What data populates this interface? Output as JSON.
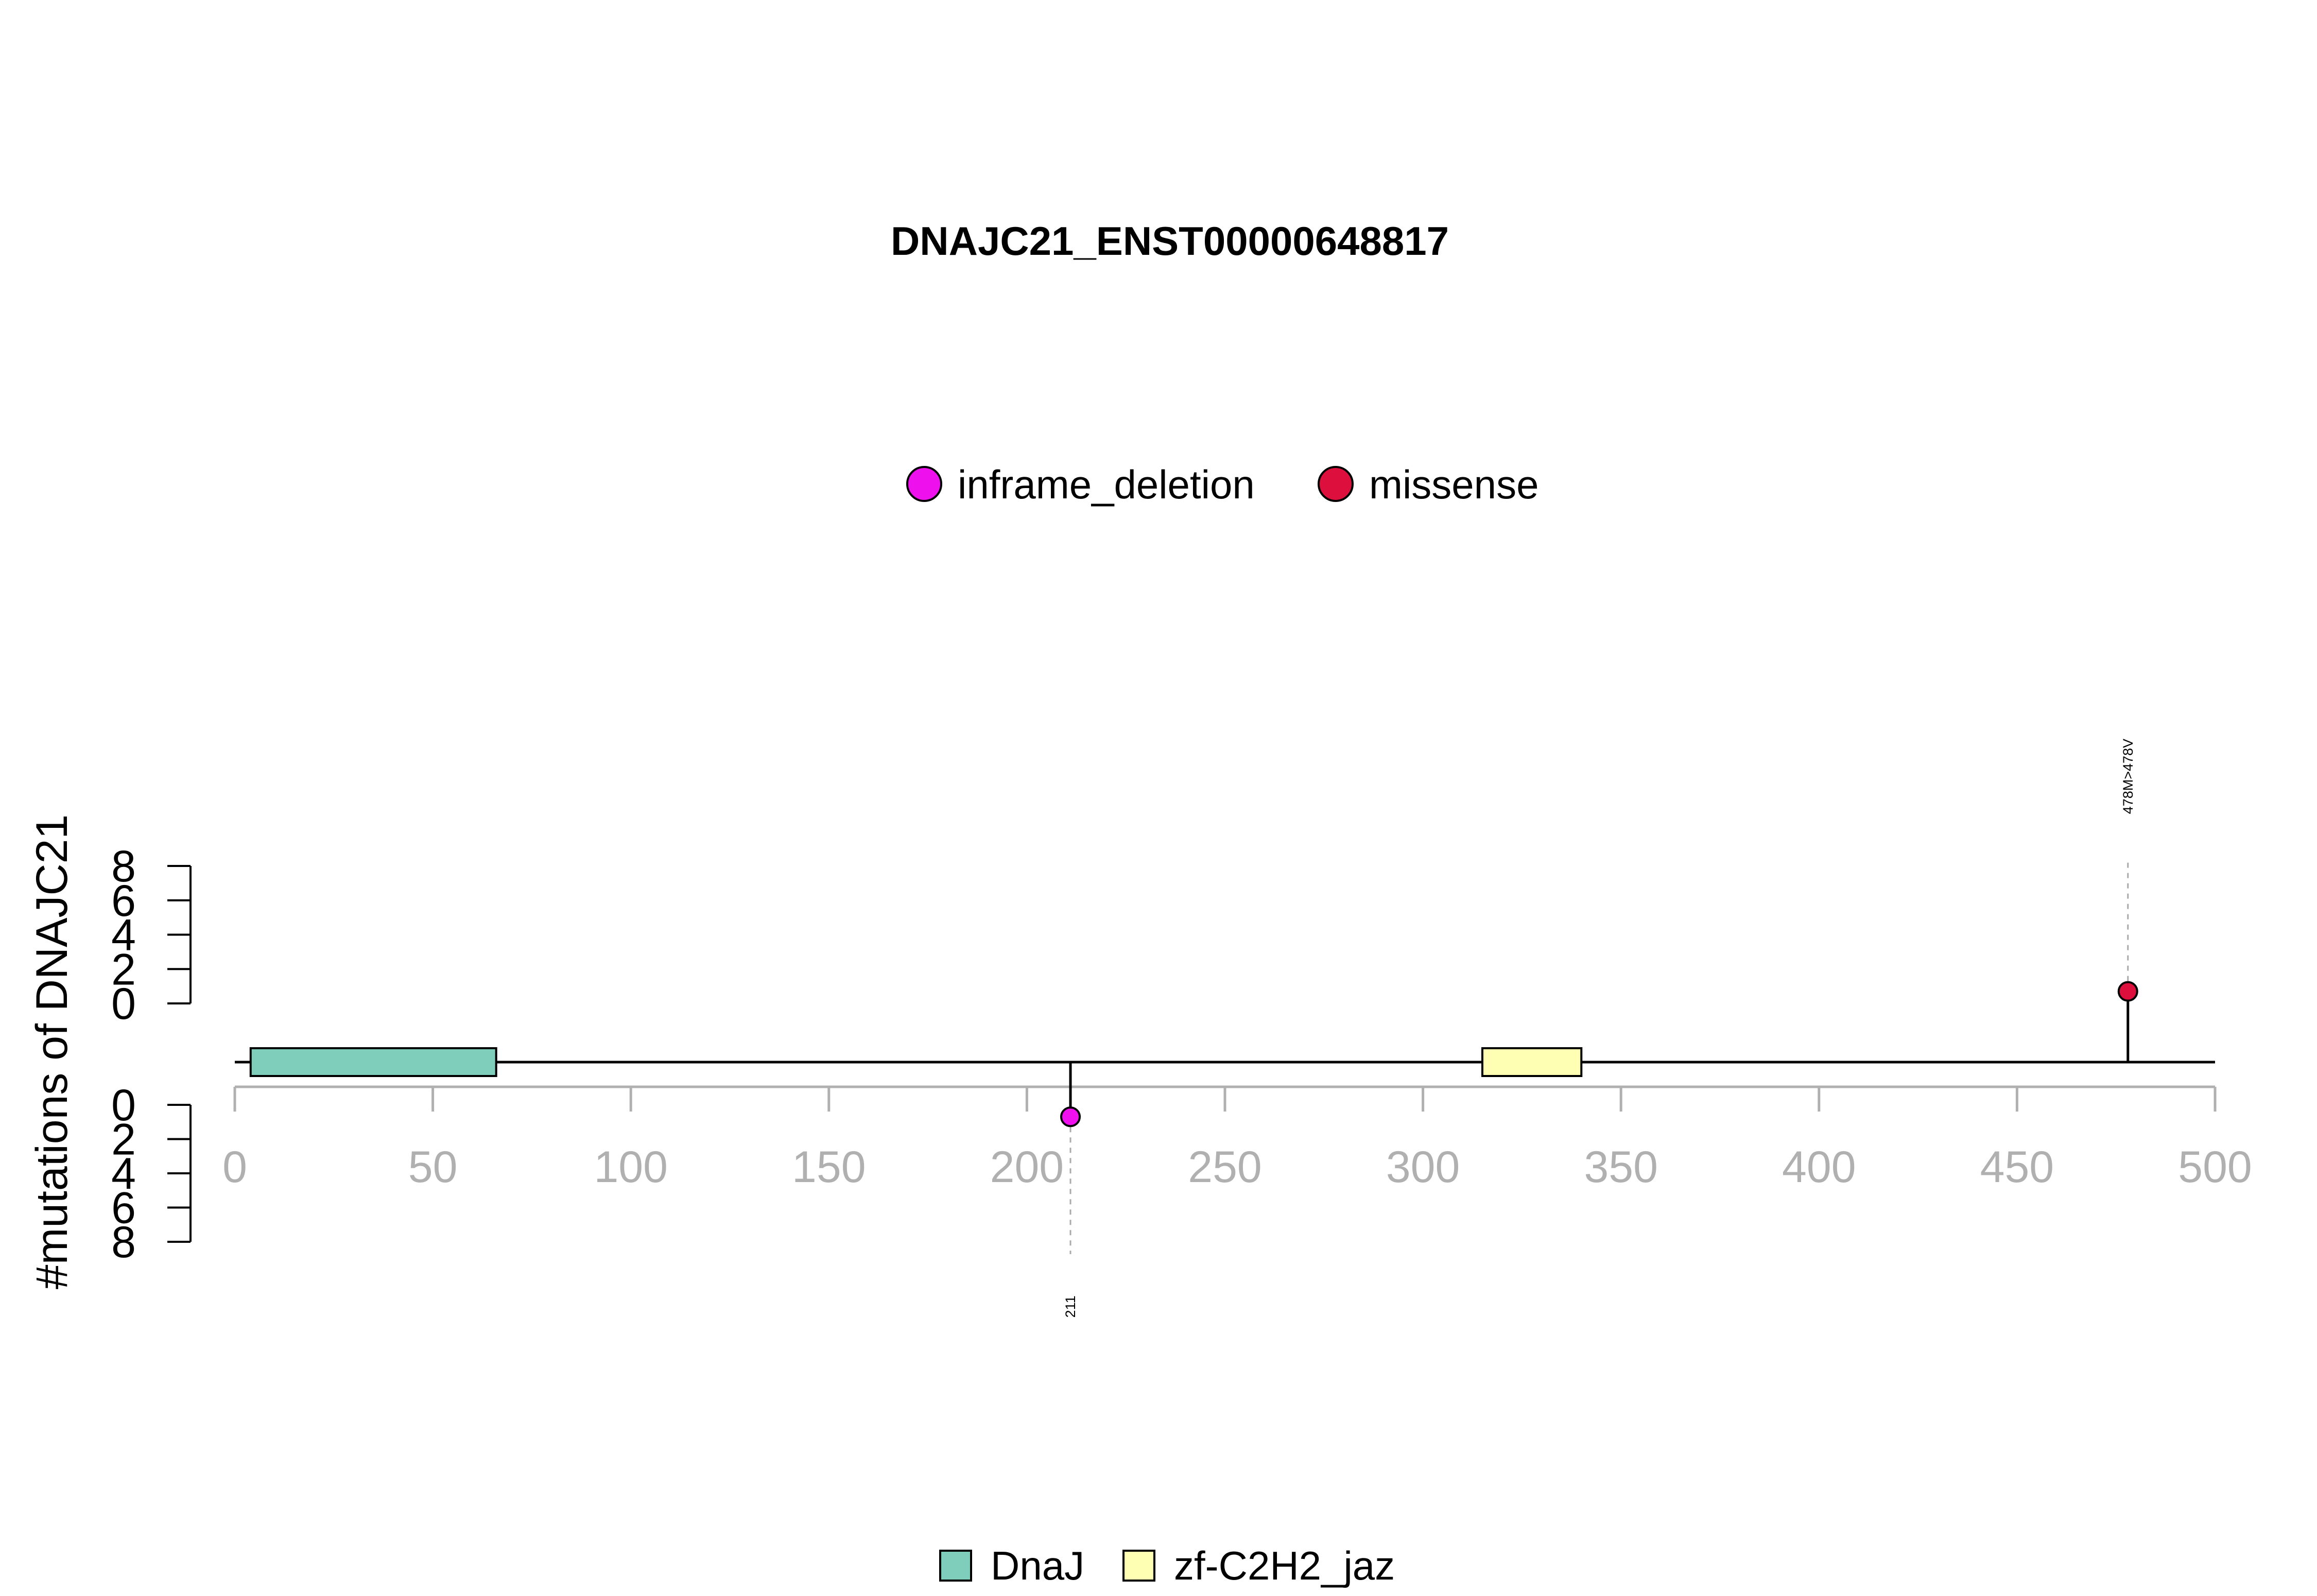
{
  "chart_data": {
    "type": "lollipop",
    "title": "DNAJC21_ENST00000648817",
    "ylabel": "#mutations of DNAJC21",
    "xlim": [
      0,
      500
    ],
    "x_ticks": [
      0,
      50,
      100,
      150,
      200,
      250,
      300,
      350,
      400,
      450,
      500
    ],
    "y_ticks": [
      0,
      2,
      4,
      6,
      8
    ],
    "ylim_top": [
      0,
      8
    ],
    "ylim_bottom": [
      0,
      8
    ],
    "mutation_legend": [
      {
        "name": "inframe_deletion",
        "color": "#ee11ee"
      },
      {
        "name": "missense",
        "color": "#dd0f3c"
      }
    ],
    "domain_legend": [
      {
        "name": "DnaJ",
        "color": "#7fcdbb"
      },
      {
        "name": "zf-C2H2_jaz",
        "color": "#ffffb3"
      }
    ],
    "domains": [
      {
        "name": "DnaJ",
        "start": 4,
        "end": 66,
        "color": "#7fcdbb"
      },
      {
        "name": "zf-C2H2_jaz",
        "start": 315,
        "end": 340,
        "color": "#ffffb3"
      }
    ],
    "mutations": [
      {
        "position": 211,
        "count": 1,
        "side": "bottom",
        "type": "inframe_deletion",
        "color": "#ee11ee",
        "label": "211"
      },
      {
        "position": 478,
        "count": 1,
        "side": "top",
        "type": "missense",
        "color": "#dd0f3c",
        "label": "478M>478V"
      }
    ]
  }
}
